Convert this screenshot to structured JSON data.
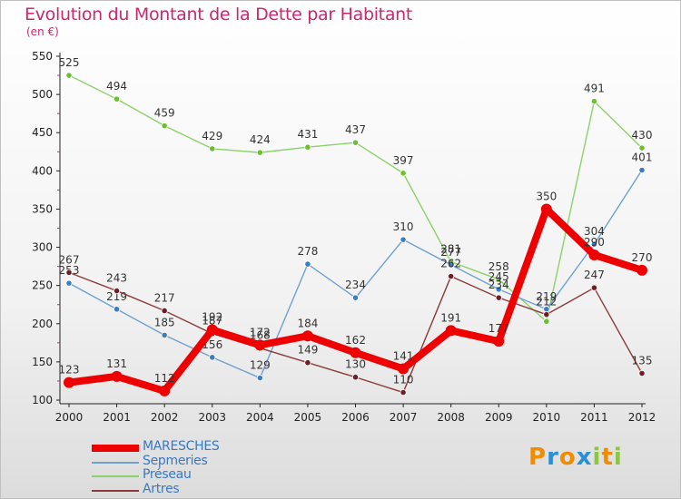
{
  "title": "Evolution du Montant de la Dette par Habitant",
  "unit": "(en €)",
  "brand": {
    "letters": [
      "P",
      "r",
      "o",
      "x",
      "i",
      "t",
      "i"
    ],
    "colors": [
      "#f08c00",
      "#2a8fd6",
      "#f08c00",
      "#2a8fd6",
      "#8cc63f",
      "#f08c00",
      "#8cc63f"
    ]
  },
  "chart_data": {
    "type": "line",
    "title": "Evolution du Montant de la Dette par Habitant",
    "ylabel": "(en €)",
    "xlabel": "",
    "x": [
      "2000",
      "2001",
      "2002",
      "2003",
      "2004",
      "2005",
      "2006",
      "2007",
      "2008",
      "2009",
      "2010",
      "2011",
      "2012"
    ],
    "ylim": [
      100,
      550
    ],
    "yticks": [
      "100",
      "150",
      "200",
      "250",
      "300",
      "350",
      "400",
      "450",
      "500",
      "550"
    ],
    "grid": false,
    "legend_position": "bottom-left",
    "series": [
      {
        "name": "Préseau",
        "color": "#8cd16a",
        "marker": "#6cbf2e",
        "values": [
          525,
          494,
          459,
          429,
          424,
          431,
          437,
          397,
          281,
          258,
          203,
          491,
          430
        ],
        "labels": [
          "525",
          "494",
          "459",
          "429",
          "424",
          "431",
          "437",
          "397",
          "281",
          "258",
          "",
          "491",
          "430"
        ]
      },
      {
        "name": "Sepmeries",
        "color": "#6fa0cf",
        "marker": "#3d7dbf",
        "values": [
          253,
          219,
          185,
          156,
          129,
          278,
          234,
          310,
          277,
          245,
          219,
          304,
          401
        ],
        "labels": [
          "253",
          "219",
          "185",
          "156",
          "129",
          "278",
          "234",
          "310",
          "277",
          "245",
          "219",
          "304",
          "401"
        ]
      },
      {
        "name": "Artres",
        "color": "#8c3a3a",
        "marker": "#6e1f26",
        "values": [
          267,
          243,
          217,
          187,
          168,
          149,
          130,
          110,
          262,
          234,
          212,
          247,
          135
        ],
        "labels": [
          "267",
          "243",
          "217",
          "187",
          "168",
          "149",
          "130",
          "110",
          "262",
          "234",
          "212",
          "247",
          "135"
        ]
      },
      {
        "name": "MARESCHES",
        "color": "#ee0000",
        "marker": "#ee0000",
        "values": [
          123,
          131,
          112,
          192,
          172,
          184,
          162,
          141,
          191,
          177,
          350,
          290,
          270
        ],
        "labels": [
          "123",
          "131",
          "112",
          "192",
          "172",
          "184",
          "162",
          "141",
          "191",
          "177",
          "350",
          "290",
          "270"
        ]
      }
    ],
    "legend": [
      {
        "name": "MARESCHES",
        "color": "#ee0000",
        "width": 8,
        "text_color": "#3a78c0"
      },
      {
        "name": "Sepmeries",
        "color": "#6fa0cf",
        "width": 2,
        "text_color": "#3a78c0"
      },
      {
        "name": "Préseau",
        "color": "#8cd16a",
        "width": 2,
        "text_color": "#3a78c0"
      },
      {
        "name": "Artres",
        "color": "#8c3a3a",
        "width": 2,
        "text_color": "#3a78c0"
      }
    ]
  }
}
